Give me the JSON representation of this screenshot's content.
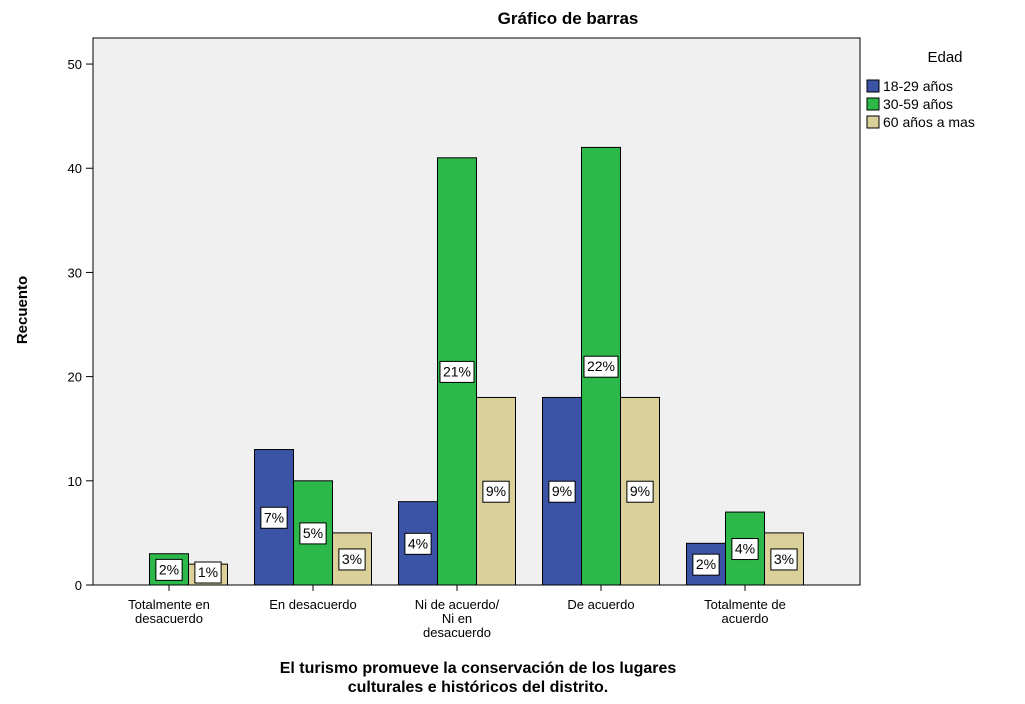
{
  "chart_data": {
    "type": "bar",
    "title": "Gráfico de barras",
    "x_label": "El turismo promueve la conservación de los lugares\nculturales e históricos del distrito.",
    "y_label": "Recuento",
    "legend_title": "Edad",
    "legend": "right",
    "categories": [
      "Totalmente en\ndesacuerdo",
      "En desacuerdo",
      "Ni de acuerdo/\nNi en\ndesacuerdo",
      "De acuerdo",
      "Totalmente de\nacuerdo"
    ],
    "series": [
      {
        "name": "18-29 años",
        "color": "#3c54a6",
        "values": [
          0,
          13,
          8,
          18,
          4
        ],
        "value_labels": [
          null,
          "7%",
          "4%",
          "9%",
          "2%"
        ]
      },
      {
        "name": "30-59 años",
        "color": "#2db84a",
        "values": [
          3,
          10,
          41,
          42,
          7
        ],
        "value_labels": [
          "2%",
          "5%",
          "21%",
          "22%",
          "4%"
        ]
      },
      {
        "name": "60 años a mas",
        "color": "#d9d09a",
        "values": [
          2,
          5,
          18,
          18,
          5
        ],
        "value_labels": [
          "1%",
          "3%",
          "9%",
          "9%",
          "3%"
        ]
      }
    ],
    "ylim": [
      0,
      52.5
    ],
    "yticks": [
      0,
      10,
      20,
      30,
      40,
      50
    ],
    "grid": false
  }
}
